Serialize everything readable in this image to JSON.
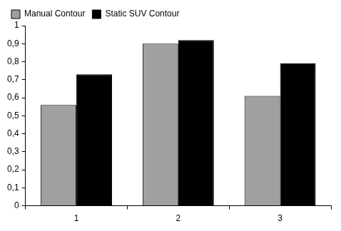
{
  "chart_data": {
    "type": "bar",
    "categories": [
      "1",
      "2",
      "3"
    ],
    "series": [
      {
        "name": "Manual Contour",
        "color": "#a0a0a0",
        "values": [
          0.56,
          0.9,
          0.61
        ]
      },
      {
        "name": "Static SUV Contour",
        "color": "#000000",
        "values": [
          0.73,
          0.92,
          0.79
        ]
      }
    ],
    "ylim": [
      0,
      1
    ],
    "yticks": [
      0,
      {
        "value": 0.1,
        "label": "0,1"
      },
      {
        "value": 0.2,
        "label": "0,2"
      },
      {
        "value": 0.3,
        "label": "0,3"
      },
      {
        "value": 0.4,
        "label": "0,4"
      },
      {
        "value": 0.5,
        "label": "0,5"
      },
      {
        "value": 0.6,
        "label": "0,6"
      },
      {
        "value": 0.7,
        "label": "0,7"
      },
      {
        "value": 0.8,
        "label": "0,8"
      },
      {
        "value": 0.9,
        "label": "0,9"
      },
      1
    ],
    "grid": false,
    "legend": "top-left"
  }
}
